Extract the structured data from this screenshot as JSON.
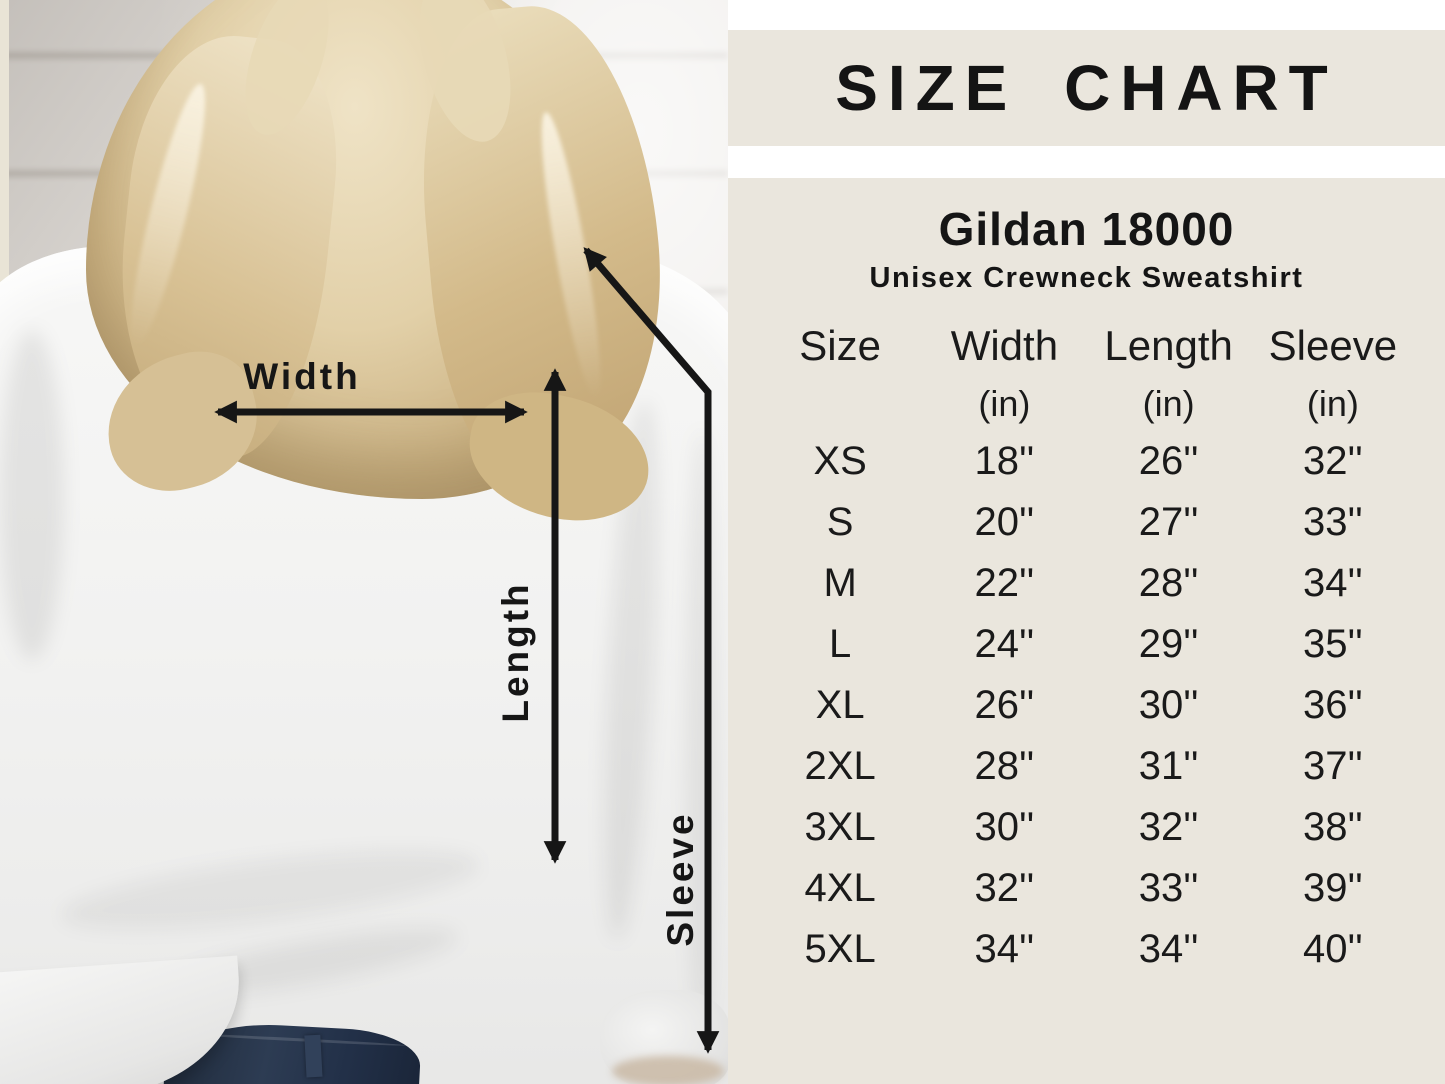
{
  "title_band": {
    "title": "SIZE CHART"
  },
  "product": {
    "name": "Gildan 18000",
    "subtitle": "Unisex Crewneck Sweatshirt"
  },
  "measurement_labels": {
    "width": "Width",
    "length": "Length",
    "sleeve": "Sleeve"
  },
  "size_table": {
    "columns": [
      "Size",
      "Width",
      "Length",
      "Sleeve"
    ],
    "units": [
      "",
      "(in)",
      "(in)",
      "(in)"
    ],
    "rows": [
      [
        "XS",
        "18''",
        "26''",
        "32''"
      ],
      [
        "S",
        "20''",
        "27''",
        "33''"
      ],
      [
        "M",
        "22''",
        "28''",
        "34''"
      ],
      [
        "L",
        "24''",
        "29''",
        "35''"
      ],
      [
        "XL",
        "26''",
        "30''",
        "36''"
      ],
      [
        "2XL",
        "28''",
        "31''",
        "37''"
      ],
      [
        "3XL",
        "30''",
        "32''",
        "38''"
      ],
      [
        "4XL",
        "32''",
        "33''",
        "39''"
      ],
      [
        "5XL",
        "34''",
        "34''",
        "40''"
      ]
    ]
  },
  "colors": {
    "panel": "#eae6dd",
    "text": "#141414",
    "arrow": "#161616",
    "denim": "#27344a"
  },
  "chart_data": {
    "type": "table",
    "title": "SIZE CHART",
    "subtitle": "Gildan 18000 Unisex Crewneck Sweatshirt",
    "columns": [
      "Size",
      "Width (in)",
      "Length (in)",
      "Sleeve (in)"
    ],
    "rows": [
      [
        "XS",
        18,
        26,
        32
      ],
      [
        "S",
        20,
        27,
        33
      ],
      [
        "M",
        22,
        28,
        34
      ],
      [
        "L",
        24,
        29,
        35
      ],
      [
        "XL",
        26,
        30,
        36
      ],
      [
        "2XL",
        28,
        31,
        37
      ],
      [
        "3XL",
        30,
        32,
        38
      ],
      [
        "4XL",
        32,
        33,
        39
      ],
      [
        "5XL",
        34,
        34,
        40
      ]
    ]
  }
}
